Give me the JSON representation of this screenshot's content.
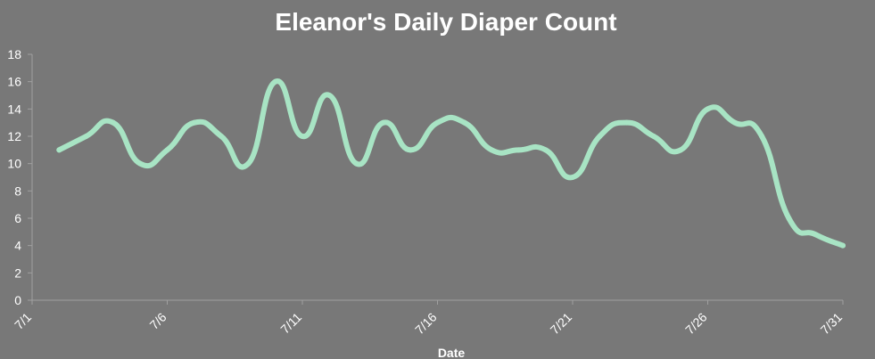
{
  "chart_data": {
    "type": "line",
    "title": "Eleanor's Daily Diaper Count",
    "xlabel": "Date",
    "ylabel": "",
    "ylim": [
      0,
      18
    ],
    "yticks": [
      0,
      2,
      4,
      6,
      8,
      10,
      12,
      14,
      16,
      18
    ],
    "xlim": [
      1,
      31
    ],
    "xticks": [
      {
        "day": 1,
        "label": "7/1"
      },
      {
        "day": 6,
        "label": "7/6"
      },
      {
        "day": 11,
        "label": "7/11"
      },
      {
        "day": 16,
        "label": "7/16"
      },
      {
        "day": 21,
        "label": "7/21"
      },
      {
        "day": 26,
        "label": "7/26"
      },
      {
        "day": 31,
        "label": "7/31"
      }
    ],
    "grid": false,
    "legend": "none",
    "series": [
      {
        "color": "#a8e4c4",
        "x": [
          2,
          3,
          4,
          5,
          6,
          7,
          8,
          9,
          10,
          11,
          12,
          13,
          14,
          15,
          16,
          17,
          18,
          19,
          20,
          21,
          22,
          23,
          24,
          25,
          26,
          27,
          28,
          29,
          30,
          31
        ],
        "y": [
          11,
          12,
          13,
          10,
          11,
          13,
          12,
          10,
          16,
          12,
          15,
          10,
          13,
          11,
          13,
          13,
          11,
          11,
          11,
          9,
          12,
          13,
          12,
          11,
          14,
          13,
          12,
          6,
          4.8,
          4
        ]
      }
    ],
    "colors": {
      "background": "#787878",
      "line": "#a8e4c4",
      "axis": "#a0a0a0",
      "text": "#ffffff"
    }
  }
}
